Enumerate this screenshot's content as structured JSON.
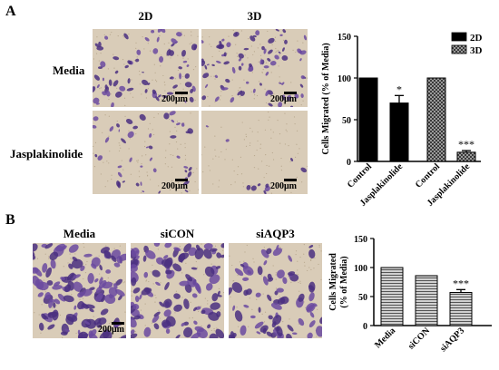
{
  "panelA": {
    "letter": "A",
    "columns": [
      "2D",
      "3D"
    ],
    "rows": [
      "Media",
      "Jasplakinolide"
    ],
    "scale_label": "200μm"
  },
  "panelB": {
    "letter": "B",
    "columns": [
      "Media",
      "siCON",
      "siAQP3"
    ],
    "scale_label": "200μm"
  },
  "colors": {
    "micro_bg": "#d9ccb8",
    "cell": "#6b4aa0",
    "cell_dark": "#4a2f80"
  },
  "chart_data": [
    {
      "type": "bar",
      "categories": [
        "Control",
        "Jasplakinolide",
        "Control",
        "Jasplakinolide"
      ],
      "series": [
        {
          "name": "2D",
          "values": [
            100,
            70,
            null,
            null
          ],
          "errors": [
            0,
            9,
            null,
            null
          ],
          "pattern": "solid-black"
        },
        {
          "name": "3D",
          "values": [
            null,
            null,
            100,
            11
          ],
          "errors": [
            null,
            null,
            0,
            2
          ],
          "pattern": "grey-checker"
        }
      ],
      "annotations": [
        {
          "category_index": 1,
          "text": "*"
        },
        {
          "category_index": 3,
          "text": "***"
        }
      ],
      "ylabel": "Cells Migrated (% of Media)",
      "ylim": [
        0,
        150
      ],
      "yticks": [
        0,
        50,
        100,
        150
      ],
      "legend": "top-right"
    },
    {
      "type": "bar",
      "categories": [
        "Media",
        "siCON",
        "siAQP3"
      ],
      "values": [
        100,
        86,
        57
      ],
      "errors": [
        0,
        0,
        5
      ],
      "annotations": [
        {
          "category_index": 2,
          "text": "***"
        }
      ],
      "ylabel_lines": [
        "Cells Migrated",
        "(% of Media)"
      ],
      "ylim": [
        0,
        150
      ],
      "yticks": [
        0,
        50,
        100,
        150
      ]
    }
  ]
}
